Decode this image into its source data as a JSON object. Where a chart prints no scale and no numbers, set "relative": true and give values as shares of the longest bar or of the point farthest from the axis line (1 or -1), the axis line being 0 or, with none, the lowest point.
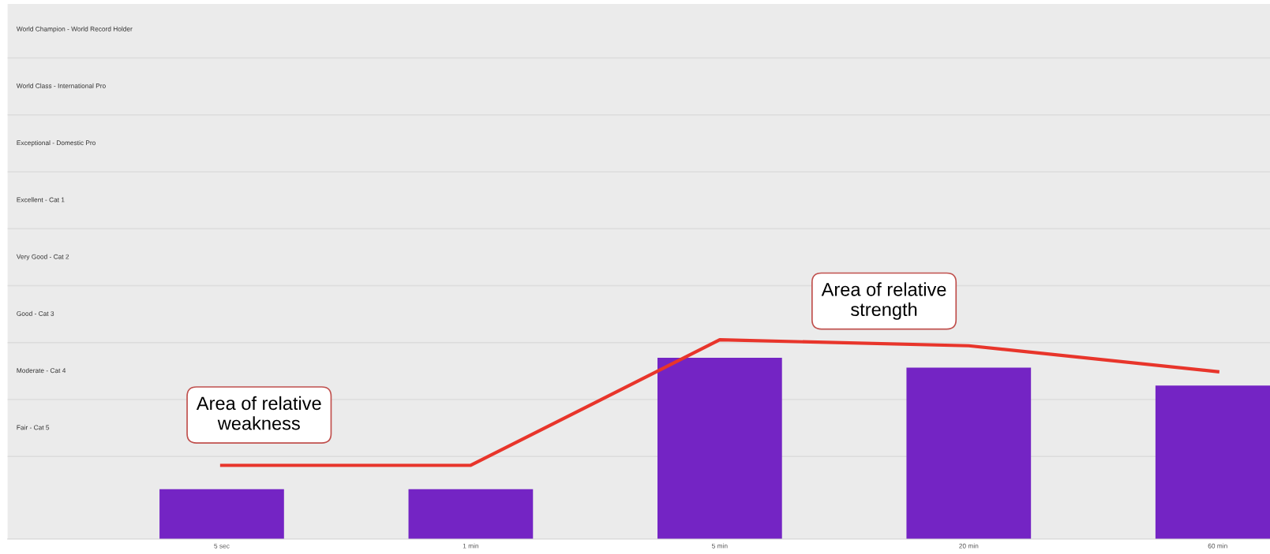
{
  "chart_data": {
    "type": "bar",
    "relative": true,
    "categories": [
      "5 sec",
      "1 min",
      "5 min",
      "20 min",
      "60 min"
    ],
    "series": [
      {
        "color": "#7424c4",
        "values": [
          0.25,
          0.25,
          0.91,
          0.86,
          0.77
        ]
      },
      {
        "type": "line",
        "color": "#e8352b",
        "values": [
          0.37,
          0.37,
          1,
          0.97,
          0.84
        ]
      }
    ],
    "grid": "y",
    "annotations": [
      "World Champion - World Record Holder",
      "World Class - International Pro",
      "Exceptional - Domestic Pro",
      "Excellent - Cat 1",
      "Very Good - Cat 2",
      "Good - Cat 3",
      "Moderate - Cat 4",
      "Fair - Cat 5",
      "Area of relative\nweakness",
      "Area of relative\nstrength"
    ]
  }
}
